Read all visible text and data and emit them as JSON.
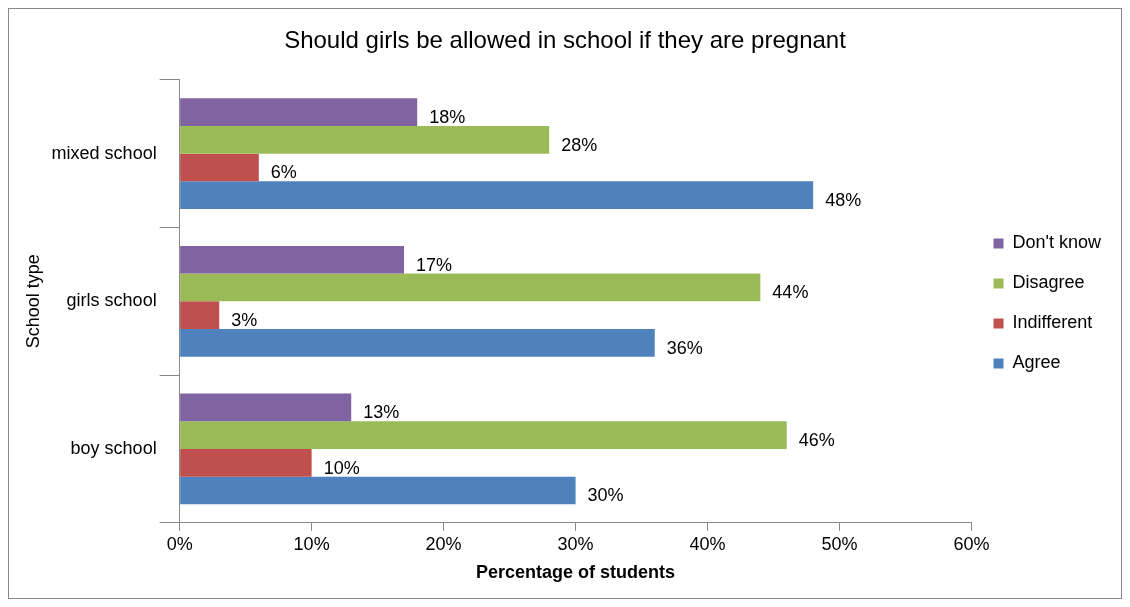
{
  "chart_data": {
    "type": "bar",
    "orientation": "horizontal",
    "title": "Should girls be allowed in school if they are pregnant",
    "xlabel": "Percentage of students",
    "ylabel": "School type",
    "categories": [
      "mixed school",
      "girls school",
      "boy school"
    ],
    "series": [
      {
        "name": "Don't know",
        "color": "#8064a2",
        "values": [
          18,
          17,
          13
        ],
        "value_labels": [
          "18%",
          "17%",
          "13%"
        ]
      },
      {
        "name": "Disagree",
        "color": "#9bbb59",
        "values": [
          28,
          44,
          46
        ],
        "value_labels": [
          "28%",
          "44%",
          "46%"
        ]
      },
      {
        "name": "Indifferent",
        "color": "#c0504d",
        "values": [
          6,
          3,
          10
        ],
        "value_labels": [
          "6%",
          "3%",
          "10%"
        ]
      },
      {
        "name": "Agree",
        "color": "#4f81bd",
        "values": [
          48,
          36,
          30
        ],
        "value_labels": [
          "48%",
          "36%",
          "30%"
        ]
      }
    ],
    "xlim": [
      0,
      60
    ],
    "xticks": [
      {
        "value": 0,
        "label": "0%"
      },
      {
        "value": 10,
        "label": "10%"
      },
      {
        "value": 20,
        "label": "20%"
      },
      {
        "value": 30,
        "label": "30%"
      },
      {
        "value": 40,
        "label": "40%"
      },
      {
        "value": 50,
        "label": "50%"
      },
      {
        "value": 60,
        "label": "60%"
      }
    ],
    "legend": "right",
    "grid": false
  }
}
